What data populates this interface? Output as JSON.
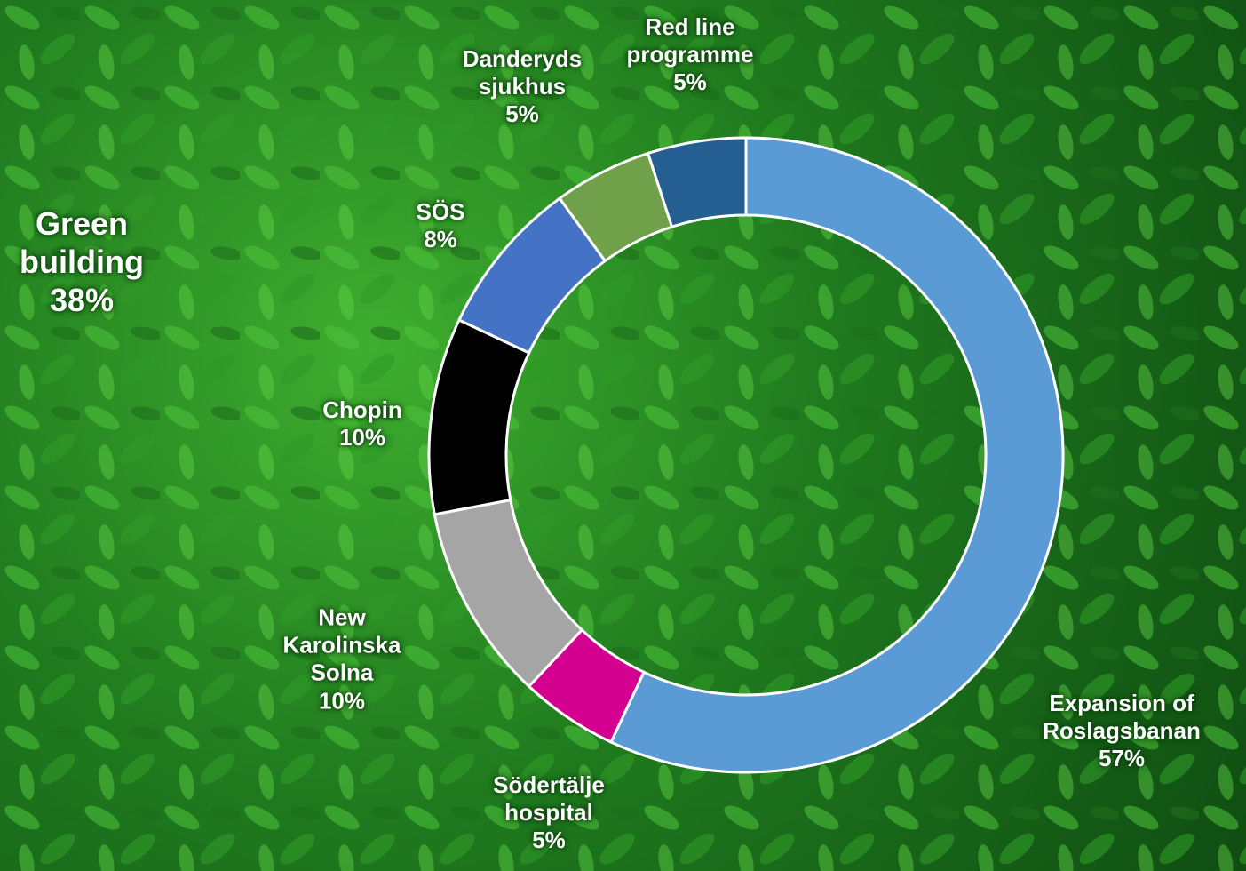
{
  "chart_data": {
    "type": "donut",
    "categories": [
      "Expansion of Roslagsbanan",
      "Södertälje hospital",
      "New Karolinska Solna",
      "Chopin",
      "SÖS",
      "Danderyds sjukhus",
      "Red line programme"
    ],
    "values": [
      57,
      5,
      10,
      10,
      8,
      5,
      5
    ],
    "value_labels": [
      "57%",
      "5%",
      "10%",
      "10%",
      "8%",
      "5%",
      "5%"
    ],
    "colors": [
      "#5b9bd5",
      "#d4008f",
      "#a5a5a5",
      "#000000",
      "#4472c4",
      "#70a04a",
      "#255e91"
    ],
    "annotation": {
      "text": "Green building",
      "value_label": "38%"
    }
  }
}
